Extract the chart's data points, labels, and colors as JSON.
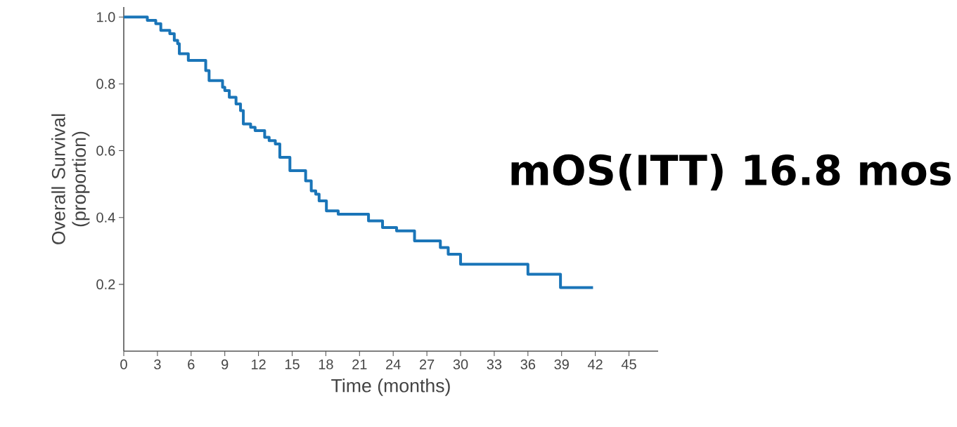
{
  "chart_data": {
    "type": "step",
    "xlabel": "Time (months)",
    "ylabel": "Overall Survival (proportion)",
    "annotations": [
      "mOS(ITT) 16.8 mos"
    ],
    "x": [
      0,
      2.1,
      2.85,
      3.3,
      4.1,
      4.5,
      4.8,
      4.95,
      5.75,
      7.3,
      7.6,
      8.8,
      9.0,
      9.4,
      10.0,
      10.4,
      10.65,
      11.3,
      11.7,
      12.55,
      12.95,
      13.5,
      13.9,
      14.8,
      16.2,
      16.7,
      17.1,
      17.4,
      18.05,
      19.1,
      21.8,
      23.05,
      24.3,
      25.9,
      28.2,
      28.9,
      30.0,
      36.0,
      38.9,
      41.8
    ],
    "values": [
      1.0,
      0.99,
      0.98,
      0.96,
      0.95,
      0.93,
      0.92,
      0.89,
      0.87,
      0.84,
      0.81,
      0.79,
      0.78,
      0.76,
      0.74,
      0.72,
      0.68,
      0.67,
      0.66,
      0.64,
      0.63,
      0.62,
      0.58,
      0.54,
      0.51,
      0.48,
      0.47,
      0.45,
      0.42,
      0.41,
      0.39,
      0.37,
      0.36,
      0.33,
      0.31,
      0.29,
      0.26,
      0.23,
      0.19,
      0.19
    ],
    "color": "#1a75b8",
    "xlim": [
      0,
      47.6
    ],
    "ylim": [
      0,
      1.03
    ],
    "xticks": [
      0,
      3,
      6,
      9,
      12,
      15,
      18,
      21,
      24,
      27,
      30,
      33,
      36,
      39,
      42,
      45
    ],
    "yticks": [
      0.2,
      0.4,
      0.6,
      0.8,
      {
        "value": 1.0,
        "label": "1.0"
      }
    ],
    "grid": false
  }
}
